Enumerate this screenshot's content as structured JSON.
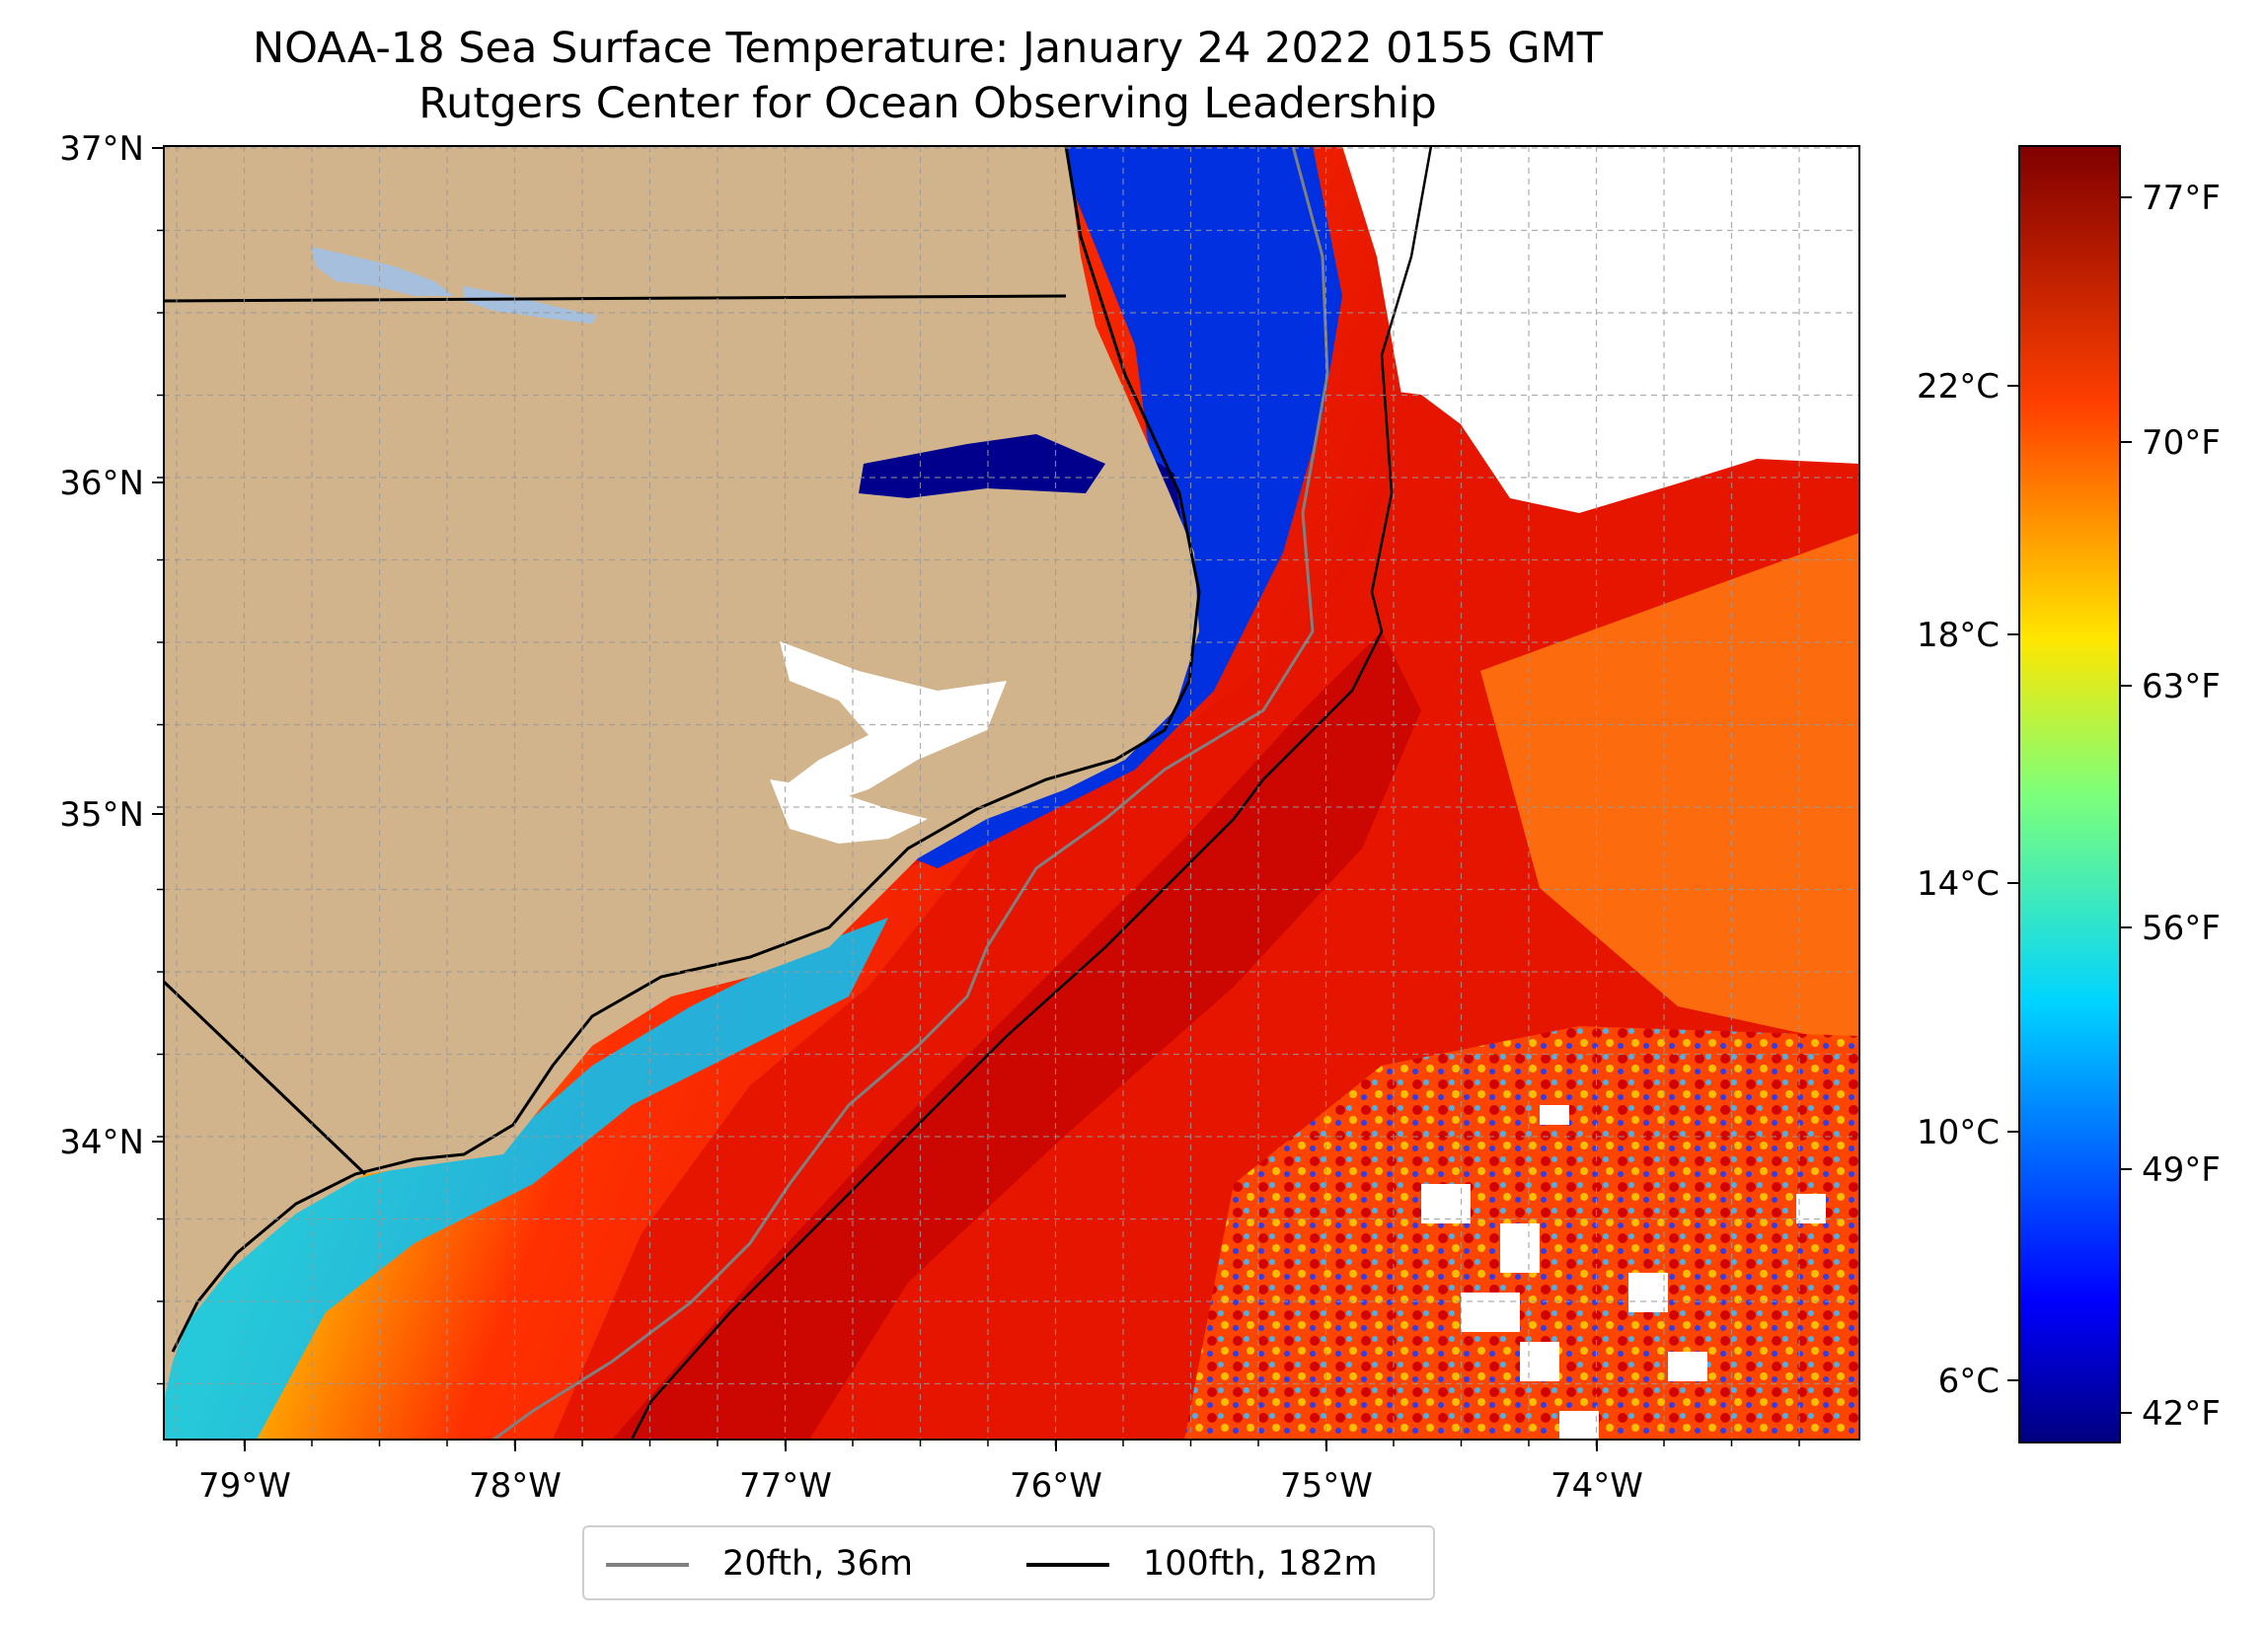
{
  "title": "NOAA-18 Sea Surface Temperature: January 24 2022 0155 GMT",
  "subtitle": "Rutgers Center for Ocean Observing Leadership",
  "axes": {
    "lon_ticks": [
      "79°W",
      "78°W",
      "77°W",
      "76°W",
      "75°W",
      "74°W"
    ],
    "lat_ticks": [
      "37°N",
      "36°N",
      "35°N",
      "34°N"
    ]
  },
  "colorbar": {
    "celsius_ticks": [
      "22°C",
      "18°C",
      "14°C",
      "10°C",
      "6°C"
    ],
    "fahrenheit_ticks": [
      "77°F",
      "70°F",
      "63°F",
      "56°F",
      "49°F",
      "42°F"
    ]
  },
  "legend": {
    "items": [
      {
        "label": "20fth, 36m",
        "color": "#808080"
      },
      {
        "label": "100fth, 182m",
        "color": "#000000"
      }
    ]
  },
  "colors": {
    "land": "#d2b48c",
    "lake": "#a5bfdd",
    "cold": "#000080",
    "warm": "#c80000",
    "nodata": "#ffffff"
  }
}
